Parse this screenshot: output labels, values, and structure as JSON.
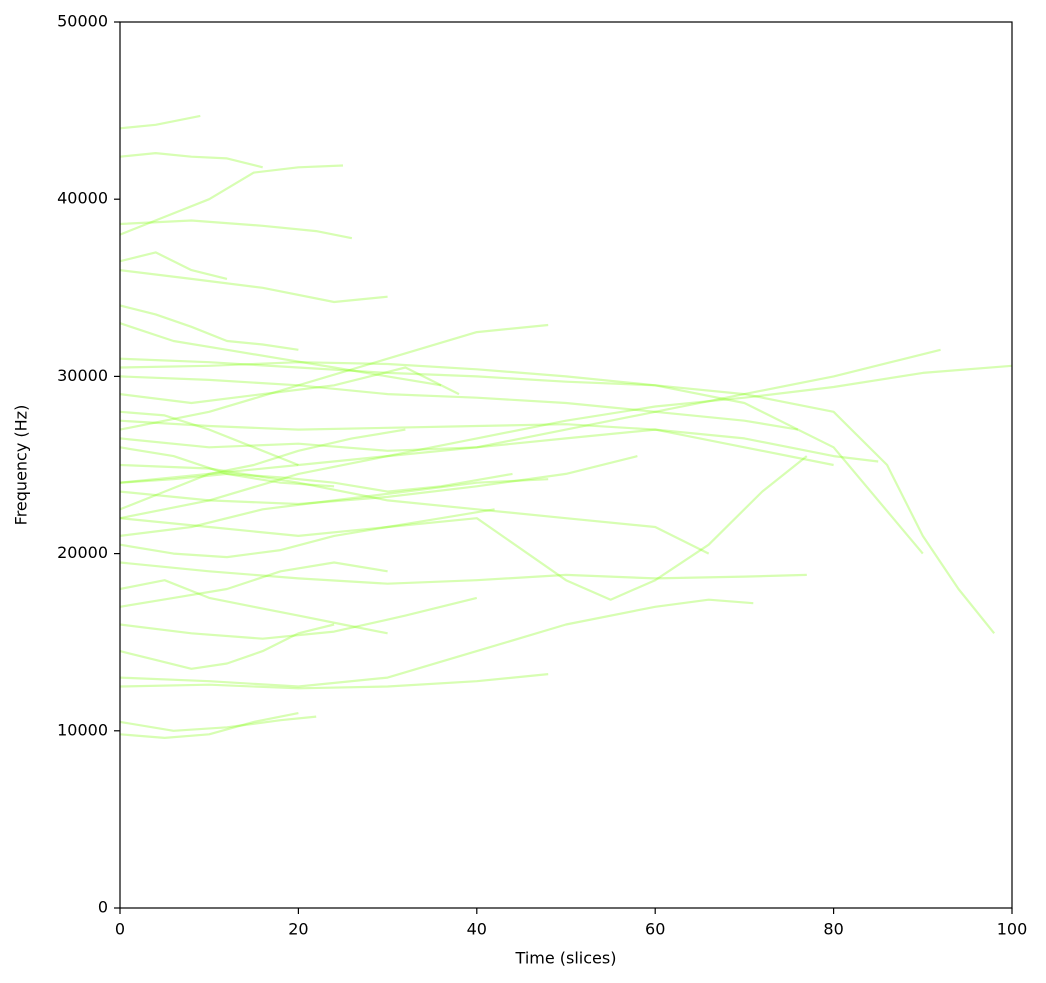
{
  "chart_data": {
    "type": "line",
    "xlabel": "Time (slices)",
    "ylabel": "Frequency (Hz)",
    "xlim": [
      0,
      100
    ],
    "xticks": [
      0,
      20,
      40,
      60,
      80,
      100
    ],
    "ylim": [
      0,
      50000
    ],
    "yticks": [
      0,
      10000,
      20000,
      30000,
      40000,
      50000
    ],
    "series": [
      {
        "color": "#7cfc00",
        "x": [
          0,
          10,
          20,
          30,
          40,
          50,
          60,
          70,
          80,
          90,
          100
        ],
        "values": [
          22000,
          23000,
          24500,
          25500,
          26500,
          27500,
          28300,
          28800,
          29400,
          30200,
          30600
        ]
      },
      {
        "color": "#7cfc00",
        "x": [
          0,
          10,
          20,
          30,
          40,
          50,
          60,
          70,
          80,
          86,
          90,
          94,
          98
        ],
        "values": [
          31000,
          30800,
          30500,
          30200,
          30000,
          29700,
          29500,
          29000,
          28000,
          25000,
          21000,
          18000,
          15500
        ]
      },
      {
        "color": "#7cfc00",
        "x": [
          0,
          10,
          20,
          30,
          40,
          50,
          60,
          70,
          80,
          88,
          92
        ],
        "values": [
          24000,
          24500,
          25000,
          25500,
          26000,
          27000,
          28000,
          29000,
          30000,
          31000,
          31500
        ]
      },
      {
        "color": "#7cfc00",
        "x": [
          0,
          10,
          20,
          30,
          40,
          50,
          55,
          60,
          66,
          72,
          77
        ],
        "values": [
          22000,
          21500,
          21000,
          21500,
          22000,
          18500,
          17400,
          18500,
          20500,
          23500,
          25500
        ]
      },
      {
        "color": "#7cfc00",
        "x": [
          0,
          10,
          20,
          30,
          40,
          50,
          60,
          66,
          71
        ],
        "values": [
          13000,
          12800,
          12500,
          13000,
          14500,
          16000,
          17000,
          17400,
          17200
        ]
      },
      {
        "color": "#7cfc00",
        "x": [
          0,
          10,
          20,
          30,
          40,
          48
        ],
        "values": [
          27000,
          28000,
          29500,
          31000,
          32500,
          32900
        ]
      },
      {
        "color": "#7cfc00",
        "x": [
          0,
          4,
          9
        ],
        "values": [
          44000,
          44200,
          44700
        ]
      },
      {
        "color": "#7cfc00",
        "x": [
          0,
          4,
          8,
          12,
          16
        ],
        "values": [
          42400,
          42600,
          42400,
          42300,
          41800
        ]
      },
      {
        "color": "#7cfc00",
        "x": [
          0,
          8,
          16,
          22,
          26
        ],
        "values": [
          38600,
          38800,
          38500,
          38200,
          37800
        ]
      },
      {
        "color": "#7cfc00",
        "x": [
          0,
          10,
          20,
          30,
          40,
          50,
          60,
          70,
          80
        ],
        "values": [
          27500,
          27200,
          27000,
          27100,
          27200,
          27300,
          27000,
          26000,
          25000
        ]
      },
      {
        "color": "#7cfc00",
        "x": [
          0,
          10,
          20,
          30,
          40,
          50,
          60,
          70,
          77
        ],
        "values": [
          19500,
          19000,
          18600,
          18300,
          18500,
          18800,
          18600,
          18700,
          18800
        ]
      },
      {
        "color": "#7cfc00",
        "x": [
          0,
          10,
          20,
          30,
          40,
          50,
          60,
          70,
          80,
          90
        ],
        "values": [
          30500,
          30600,
          30800,
          30700,
          30400,
          30000,
          29500,
          28500,
          26000,
          20000
        ]
      },
      {
        "color": "#7cfc00",
        "x": [
          0,
          8,
          16,
          24,
          30
        ],
        "values": [
          36000,
          35500,
          35000,
          34200,
          34500
        ]
      },
      {
        "color": "#7cfc00",
        "x": [
          0,
          6,
          12,
          18,
          22
        ],
        "values": [
          10500,
          10000,
          10200,
          10600,
          10800
        ]
      },
      {
        "color": "#7cfc00",
        "x": [
          0,
          5,
          10,
          15,
          20
        ],
        "values": [
          9800,
          9600,
          9800,
          10500,
          11000
        ]
      },
      {
        "color": "#7cfc00",
        "x": [
          0,
          10,
          20,
          30,
          40,
          48
        ],
        "values": [
          12500,
          12600,
          12400,
          12500,
          12800,
          13200
        ]
      },
      {
        "color": "#7cfc00",
        "x": [
          0,
          10,
          20,
          30,
          40,
          50,
          58
        ],
        "values": [
          23500,
          23000,
          22800,
          23200,
          23800,
          24500,
          25500
        ]
      },
      {
        "color": "#7cfc00",
        "x": [
          0,
          8,
          16,
          24,
          32,
          40
        ],
        "values": [
          16000,
          15500,
          15200,
          15600,
          16500,
          17500
        ]
      },
      {
        "color": "#7cfc00",
        "x": [
          0,
          10,
          20,
          30,
          40,
          50,
          60,
          66
        ],
        "values": [
          25000,
          24800,
          24000,
          23000,
          22500,
          22000,
          21500,
          20000
        ]
      },
      {
        "color": "#7cfc00",
        "x": [
          0,
          6,
          12,
          18,
          24,
          30,
          36
        ],
        "values": [
          33000,
          32000,
          31500,
          31000,
          30500,
          30000,
          29500
        ]
      },
      {
        "color": "#7cfc00",
        "x": [
          0,
          5,
          10,
          15,
          20,
          25
        ],
        "values": [
          38000,
          39000,
          40000,
          41500,
          41800,
          41900
        ]
      },
      {
        "color": "#7cfc00",
        "x": [
          0,
          8,
          16,
          24,
          32,
          38
        ],
        "values": [
          29000,
          28500,
          29000,
          29500,
          30500,
          29000
        ]
      },
      {
        "color": "#7cfc00",
        "x": [
          0,
          6,
          12,
          18,
          24,
          30,
          36,
          42
        ],
        "values": [
          20500,
          20000,
          19800,
          20200,
          21000,
          21500,
          22000,
          22500
        ]
      },
      {
        "color": "#7cfc00",
        "x": [
          0,
          6,
          12,
          18,
          24
        ],
        "values": [
          26000,
          25500,
          24500,
          24000,
          23800
        ]
      },
      {
        "color": "#7cfc00",
        "x": [
          0,
          5,
          10,
          15,
          20,
          25,
          30
        ],
        "values": [
          18000,
          18500,
          17500,
          17000,
          16500,
          16000,
          15500
        ]
      },
      {
        "color": "#7cfc00",
        "x": [
          0,
          4,
          8,
          12,
          16,
          20
        ],
        "values": [
          34000,
          33500,
          32800,
          32000,
          31800,
          31500
        ]
      },
      {
        "color": "#7cfc00",
        "x": [
          0,
          5,
          10,
          15,
          20,
          26,
          32
        ],
        "values": [
          22500,
          23500,
          24500,
          25000,
          25800,
          26500,
          27000
        ]
      },
      {
        "color": "#7cfc00",
        "x": [
          0,
          4,
          8,
          12,
          16,
          20,
          24
        ],
        "values": [
          14500,
          14000,
          13500,
          13800,
          14500,
          15500,
          16000
        ]
      },
      {
        "color": "#7cfc00",
        "x": [
          0,
          5,
          10,
          15,
          20
        ],
        "values": [
          28000,
          27800,
          27000,
          26000,
          25000
        ]
      },
      {
        "color": "#7cfc00",
        "x": [
          0,
          6,
          12,
          18,
          24,
          30,
          36,
          44
        ],
        "values": [
          24000,
          24200,
          24500,
          24300,
          24000,
          23500,
          23800,
          24500
        ]
      },
      {
        "color": "#7cfc00",
        "x": [
          0,
          10,
          20,
          30,
          40,
          50,
          60,
          70,
          80,
          85
        ],
        "values": [
          26500,
          26000,
          26200,
          25800,
          26000,
          26500,
          27000,
          26500,
          25500,
          25200
        ]
      },
      {
        "color": "#7cfc00",
        "x": [
          0,
          8,
          16,
          24,
          32,
          40,
          48
        ],
        "values": [
          21000,
          21500,
          22500,
          23000,
          23500,
          24000,
          24200
        ]
      },
      {
        "color": "#7cfc00",
        "x": [
          0,
          4,
          8,
          12
        ],
        "values": [
          36500,
          37000,
          36000,
          35500
        ]
      },
      {
        "color": "#7cfc00",
        "x": [
          0,
          6,
          12,
          18,
          24,
          30
        ],
        "values": [
          17000,
          17500,
          18000,
          19000,
          19500,
          19000
        ]
      },
      {
        "color": "#7cfc00",
        "x": [
          0,
          10,
          20,
          30,
          40,
          50,
          60,
          70,
          76
        ],
        "values": [
          30000,
          29800,
          29500,
          29000,
          28800,
          28500,
          28000,
          27500,
          27000
        ]
      }
    ]
  }
}
